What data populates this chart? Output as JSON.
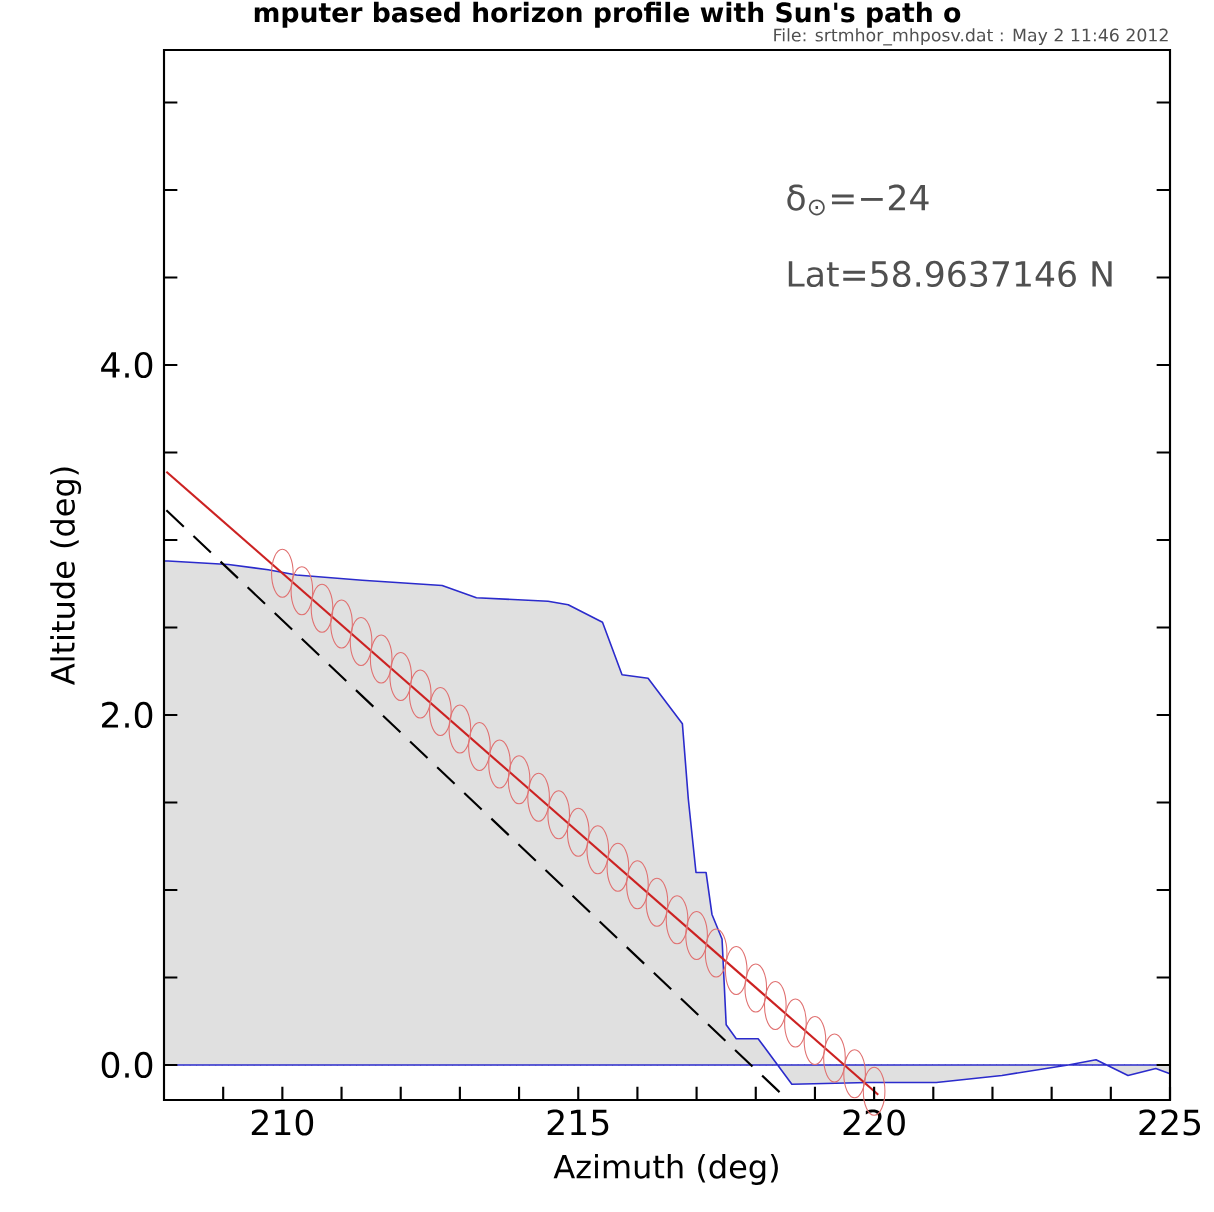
{
  "chart_data": {
    "type": "area",
    "title": "mputer based horizon profile with Sun's path o",
    "xlabel": "Azimuth (deg)",
    "ylabel": "Altitude (deg)",
    "annotations": [
      "δ$_{⊙}$=−24",
      "Lat=58.9637146 N",
      "File: srtmhor_mhposv.dat : May  2 11:46 2012"
    ],
    "xlim": [
      208,
      225
    ],
    "ylim": [
      -0.2,
      5.8
    ],
    "xticks": [
      {
        "value": 209,
        "label": null
      },
      210,
      {
        "value": 211,
        "label": null
      },
      {
        "value": 212,
        "label": null
      },
      {
        "value": 213,
        "label": null
      },
      {
        "value": 214,
        "label": null
      },
      215,
      {
        "value": 216,
        "label": null
      },
      {
        "value": 217,
        "label": null
      },
      {
        "value": 218,
        "label": null
      },
      {
        "value": 219,
        "label": null
      },
      220,
      {
        "value": 221,
        "label": null
      },
      {
        "value": 222,
        "label": null
      },
      {
        "value": 223,
        "label": null
      },
      {
        "value": 224,
        "label": null
      },
      225
    ],
    "yticks": [
      {
        "value": 0,
        "label": "0.0"
      },
      {
        "value": 0.5,
        "label": null
      },
      {
        "value": 1,
        "label": null
      },
      {
        "value": 1.5,
        "label": null
      },
      {
        "value": 2,
        "label": "2.0"
      },
      {
        "value": 2.5,
        "label": null
      },
      {
        "value": 3,
        "label": null
      },
      {
        "value": 3.5,
        "label": null
      },
      {
        "value": 4,
        "label": "4.0"
      },
      {
        "value": 4.5,
        "label": null
      },
      {
        "value": 5,
        "label": null
      },
      {
        "value": 5.5,
        "label": null
      }
    ],
    "grid": false,
    "ref_lines": [
      {
        "axis": "y",
        "value": 0,
        "color": "#888888",
        "line_style": "dotted"
      }
    ],
    "series": [
      {
        "color": "#2b2bcc",
        "x": [
          208.0,
          208.07,
          209.09,
          209.76,
          210.24,
          211.35,
          212.7,
          213.28,
          214.49,
          214.83,
          215.41,
          215.74,
          216.18,
          216.76,
          216.86,
          216.99,
          217.16,
          217.26,
          217.43,
          217.5,
          217.67,
          218.04,
          218.61,
          219.9,
          221.05,
          222.16,
          223.28,
          223.75,
          224.29,
          224.76,
          225.0
        ],
        "values": [
          2.88,
          2.88,
          2.86,
          2.83,
          2.8,
          2.77,
          2.74,
          2.67,
          2.65,
          2.63,
          2.53,
          2.23,
          2.21,
          1.95,
          1.52,
          1.1,
          1.1,
          0.86,
          0.72,
          0.23,
          0.15,
          0.15,
          -0.11,
          -0.1,
          -0.1,
          -0.06,
          0.0,
          0.03,
          -0.06,
          -0.02,
          -0.05
        ]
      },
      {
        "type": "line",
        "color": "#000000",
        "line_style": "dashed",
        "x": [
          208.04,
          218.51
        ],
        "values": [
          3.17,
          -0.19
        ]
      },
      {
        "type": "scatter",
        "color": "#e07070",
        "marker": "circle",
        "x": [
          210,
          210.33,
          210.67,
          211,
          211.33,
          211.67,
          212,
          212.33,
          212.67,
          213,
          213.33,
          213.67,
          214,
          214.33,
          214.67,
          215,
          215.33,
          215.67,
          216,
          216.33,
          216.67,
          217,
          217.33,
          217.67,
          218,
          218.33,
          218.67,
          219,
          219.33,
          219.67,
          220
        ],
        "values": [
          2.81,
          2.71,
          2.61,
          2.52,
          2.42,
          2.32,
          2.22,
          2.12,
          2.02,
          1.92,
          1.82,
          1.72,
          1.63,
          1.53,
          1.43,
          1.33,
          1.23,
          1.13,
          1.03,
          0.93,
          0.83,
          0.74,
          0.64,
          0.54,
          0.44,
          0.34,
          0.24,
          0.14,
          0.04,
          -0.05,
          -0.15
        ]
      },
      {
        "type": "line",
        "color": "#cc2222",
        "x": [
          208.04,
          220.07
        ],
        "values": [
          3.39,
          -0.17
        ]
      }
    ]
  }
}
